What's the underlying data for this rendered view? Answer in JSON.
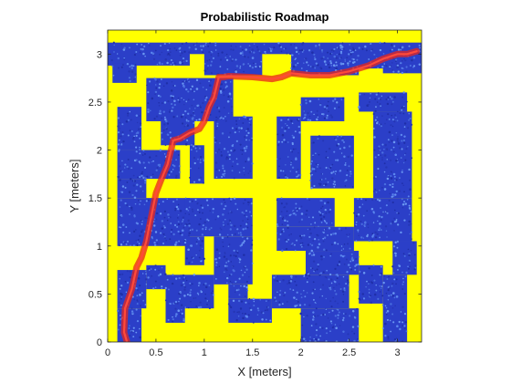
{
  "chart_data": {
    "type": "map",
    "title": "Probabilistic Roadmap",
    "xlabel": "X [meters]",
    "ylabel": "Y [meters]",
    "xlim": [
      0,
      3.25
    ],
    "ylim": [
      0,
      3.25
    ],
    "xticks": [
      0,
      0.5,
      1,
      1.5,
      2,
      2.5,
      3
    ],
    "xtick_labels": [
      "0",
      "0.5",
      "1",
      "1.5",
      "2",
      "2.5",
      "3"
    ],
    "yticks": [
      0,
      0.5,
      1,
      1.5,
      2,
      2.5,
      3
    ],
    "ytick_labels": [
      "0",
      "0.5",
      "1",
      "1.5",
      "2",
      "2.5",
      "3"
    ],
    "grid": false,
    "colors": {
      "obstacle": "#ffff00",
      "free_space_samples": "#2b3fc8",
      "path": "#e8261b",
      "axes": "#262626"
    },
    "obstacle_rects": [
      {
        "x0": 0,
        "y0": 0,
        "x1": 3.25,
        "y1": 3.25
      }
    ],
    "free_rects": [
      {
        "x0": 0.0,
        "y0": 2.88,
        "x1": 0.85,
        "y1": 3.12
      },
      {
        "x0": 0.05,
        "y0": 2.7,
        "x1": 0.3,
        "y1": 2.9
      },
      {
        "x0": 0.85,
        "y0": 3.0,
        "x1": 2.2,
        "y1": 3.12
      },
      {
        "x0": 1.0,
        "y0": 2.78,
        "x1": 1.6,
        "y1": 3.05
      },
      {
        "x0": 1.9,
        "y0": 2.78,
        "x1": 2.6,
        "y1": 3.05
      },
      {
        "x0": 2.2,
        "y0": 2.85,
        "x1": 3.25,
        "y1": 3.12
      },
      {
        "x0": 2.85,
        "y0": 2.8,
        "x1": 3.25,
        "y1": 2.9
      },
      {
        "x0": 0.4,
        "y0": 2.3,
        "x1": 1.3,
        "y1": 2.75
      },
      {
        "x0": 0.1,
        "y0": 2.0,
        "x1": 0.35,
        "y1": 2.45
      },
      {
        "x0": 0.1,
        "y0": 1.7,
        "x1": 0.75,
        "y1": 2.0
      },
      {
        "x0": 0.1,
        "y0": 1.5,
        "x1": 0.4,
        "y1": 1.7
      },
      {
        "x0": 0.55,
        "y0": 2.05,
        "x1": 0.9,
        "y1": 2.35
      },
      {
        "x0": 0.85,
        "y0": 1.65,
        "x1": 1.0,
        "y1": 2.05
      },
      {
        "x0": 1.1,
        "y0": 1.7,
        "x1": 1.5,
        "y1": 2.35
      },
      {
        "x0": 1.75,
        "y0": 1.7,
        "x1": 2.0,
        "y1": 2.35
      },
      {
        "x0": 2.0,
        "y0": 2.3,
        "x1": 2.45,
        "y1": 2.55
      },
      {
        "x0": 2.6,
        "y0": 2.4,
        "x1": 3.1,
        "y1": 2.6
      },
      {
        "x0": 2.1,
        "y0": 1.6,
        "x1": 2.55,
        "y1": 2.15
      },
      {
        "x0": 2.75,
        "y0": 1.5,
        "x1": 3.15,
        "y1": 2.4
      },
      {
        "x0": 0.1,
        "y0": 1.0,
        "x1": 0.85,
        "y1": 1.5
      },
      {
        "x0": 0.8,
        "y0": 1.1,
        "x1": 1.5,
        "y1": 1.5
      },
      {
        "x0": 0.8,
        "y0": 0.8,
        "x1": 1.0,
        "y1": 1.1
      },
      {
        "x0": 1.1,
        "y0": 0.6,
        "x1": 1.5,
        "y1": 1.1
      },
      {
        "x0": 1.75,
        "y0": 1.2,
        "x1": 2.35,
        "y1": 1.5
      },
      {
        "x0": 1.75,
        "y0": 0.95,
        "x1": 2.55,
        "y1": 1.2
      },
      {
        "x0": 2.55,
        "y0": 1.05,
        "x1": 3.15,
        "y1": 1.5
      },
      {
        "x0": 0.1,
        "y0": 0.35,
        "x1": 0.4,
        "y1": 0.75
      },
      {
        "x0": 0.4,
        "y0": 0.55,
        "x1": 0.6,
        "y1": 0.8
      },
      {
        "x0": 0.6,
        "y0": 0.2,
        "x1": 0.8,
        "y1": 0.7
      },
      {
        "x0": 0.75,
        "y0": 0.35,
        "x1": 1.1,
        "y1": 0.7
      },
      {
        "x0": 1.25,
        "y0": 0.2,
        "x1": 1.7,
        "y1": 0.45
      },
      {
        "x0": 1.25,
        "y0": 0.45,
        "x1": 1.45,
        "y1": 0.6
      },
      {
        "x0": 1.7,
        "y0": 0.35,
        "x1": 2.5,
        "y1": 0.7
      },
      {
        "x0": 2.05,
        "y0": 0.7,
        "x1": 2.6,
        "y1": 0.95
      },
      {
        "x0": 2.0,
        "y0": 0.0,
        "x1": 2.6,
        "y1": 0.35
      },
      {
        "x0": 2.6,
        "y0": 0.4,
        "x1": 2.85,
        "y1": 0.8
      },
      {
        "x0": 2.95,
        "y0": 0.7,
        "x1": 3.2,
        "y1": 1.05
      },
      {
        "x0": 2.85,
        "y0": 0.0,
        "x1": 3.1,
        "y1": 0.7
      },
      {
        "x0": 0.1,
        "y0": 0.0,
        "x1": 0.35,
        "y1": 0.35
      }
    ],
    "path": {
      "x": [
        0.2,
        0.17,
        0.18,
        0.25,
        0.3,
        0.35,
        0.4,
        0.45,
        0.5,
        0.55,
        0.62,
        0.68,
        0.75,
        0.85,
        0.95,
        1.0,
        1.05,
        1.1,
        1.15,
        1.2,
        1.25,
        1.5,
        1.7,
        1.8,
        1.9,
        2.1,
        2.3,
        2.5,
        2.7,
        2.85,
        3.0,
        3.1,
        3.2
      ],
      "y": [
        0.0,
        0.1,
        0.35,
        0.55,
        0.78,
        0.88,
        1.05,
        1.3,
        1.55,
        1.68,
        1.85,
        2.1,
        2.12,
        2.18,
        2.22,
        2.3,
        2.45,
        2.55,
        2.76,
        2.76,
        2.77,
        2.76,
        2.74,
        2.76,
        2.8,
        2.78,
        2.78,
        2.82,
        2.88,
        2.95,
        3.0,
        3.0,
        3.03
      ]
    }
  }
}
